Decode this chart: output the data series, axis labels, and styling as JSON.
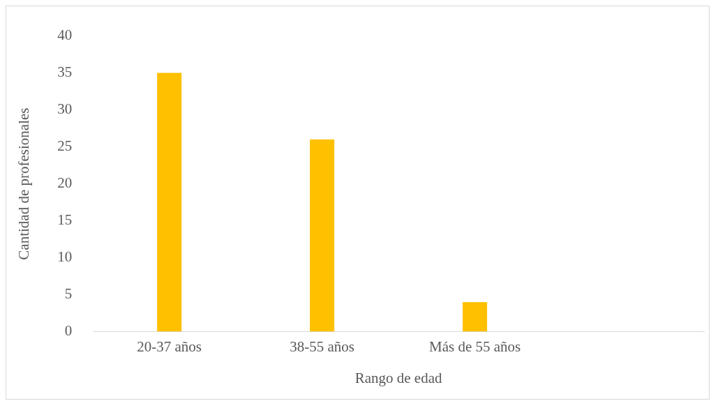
{
  "chart_data": {
    "type": "bar",
    "xlabel": "Rango de edad",
    "ylabel": "Cantidad de profesionales",
    "categories": [
      "20-37 años",
      "38-55 años",
      "Más de 55 años",
      null
    ],
    "values": [
      35,
      26,
      4,
      null
    ],
    "color": "#ffc000",
    "ylim": [
      0,
      40
    ],
    "yticks": [
      0,
      5,
      10,
      15,
      20,
      25,
      30,
      35,
      40
    ],
    "grid": false,
    "legend": false
  }
}
